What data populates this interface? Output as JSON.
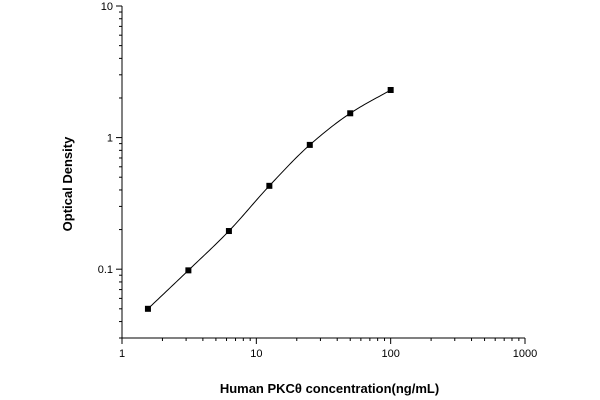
{
  "chart_data": {
    "type": "scatter",
    "title": "",
    "xlabel": "Human PKCθ  concentration(ng/mL)",
    "ylabel": "Optical Density",
    "x_scale": "log",
    "y_scale": "log",
    "xlim": [
      1,
      1000
    ],
    "ylim": [
      0.03,
      10
    ],
    "x_ticks": [
      "1",
      "10",
      "100",
      "1000"
    ],
    "y_ticks": [
      "0.1",
      "1",
      "10"
    ],
    "grid": false,
    "legend": "none",
    "series": [
      {
        "marker": "square",
        "x": [
          1.56,
          3.12,
          6.25,
          12.5,
          25,
          50,
          100
        ],
        "y": [
          0.05,
          0.098,
          0.195,
          0.43,
          0.88,
          1.53,
          2.3
        ]
      }
    ],
    "fit_curve": {
      "style": "smooth line",
      "x_range": [
        1.56,
        100
      ]
    },
    "colors": {
      "axis": "#000000",
      "marker": "#000000",
      "curve": "#000000"
    }
  }
}
